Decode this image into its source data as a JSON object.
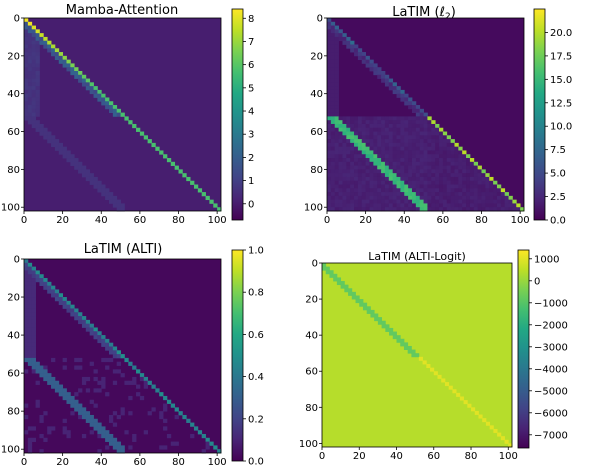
{
  "figure": {
    "layout": "2x2 grid of attention heatmaps with colorbars"
  },
  "chart_data": [
    {
      "type": "heatmap",
      "title": "Mamba-Attention",
      "x_ticks": [
        0,
        20,
        40,
        60,
        80,
        100
      ],
      "y_ticks": [
        0,
        20,
        40,
        60,
        80,
        100
      ],
      "xlim": [
        0,
        102
      ],
      "ylim": [
        102,
        0
      ],
      "colormap": "viridis",
      "colorbar": {
        "range": [
          -0.7,
          8.4
        ],
        "ticks": [
          "0",
          "1",
          "2",
          "3",
          "4",
          "5",
          "6",
          "7",
          "8"
        ]
      },
      "structure": {
        "main_diagonal_max": 8.2,
        "secondary_diagonal_value": 0.6,
        "background_value": 0.05
      }
    },
    {
      "type": "heatmap",
      "title": "LaTIM (ℓ",
      "title_sub": "2",
      "title_end": ")",
      "x_ticks": [
        0,
        20,
        40,
        60,
        80,
        100
      ],
      "y_ticks": [
        0,
        20,
        40,
        60,
        80,
        100
      ],
      "xlim": [
        0,
        102
      ],
      "ylim": [
        102,
        0
      ],
      "colormap": "viridis",
      "colorbar": {
        "range": [
          0,
          22.5
        ],
        "ticks": [
          "0.0",
          "2.5",
          "5.0",
          "7.5",
          "10.0",
          "12.5",
          "15.0",
          "17.5",
          "20.0"
        ]
      },
      "structure": {
        "main_diagonal_max": 17.5,
        "secondary_diagonal_value": 14.0,
        "background_value": 0.6
      }
    },
    {
      "type": "heatmap",
      "title": "LaTIM (ALTI)",
      "x_ticks": [
        0,
        20,
        40,
        60,
        80,
        100
      ],
      "y_ticks": [
        0,
        20,
        40,
        60,
        80,
        100
      ],
      "xlim": [
        0,
        102
      ],
      "ylim": [
        102,
        0
      ],
      "colormap": "viridis",
      "colorbar": {
        "range": [
          0,
          1.0
        ],
        "ticks": [
          "0.0",
          "0.2",
          "0.4",
          "0.6",
          "0.8",
          "1.0"
        ]
      },
      "structure": {
        "main_diagonal_max": 0.4,
        "secondary_diagonal_value": 0.3,
        "background_value": 0.02
      }
    },
    {
      "type": "heatmap",
      "title": "LaTIM (ALTI-Logit)",
      "x_ticks": [
        0,
        20,
        40,
        60,
        80,
        100
      ],
      "y_ticks": [
        0,
        20,
        40,
        60,
        80,
        100
      ],
      "xlim": [
        0,
        102
      ],
      "ylim": [
        102,
        0
      ],
      "colormap": "viridis",
      "colorbar": {
        "range": [
          -7600,
          1400
        ],
        "ticks": [
          "1000",
          "0",
          "−1000",
          "−2000",
          "−3000",
          "−4000",
          "−5000",
          "−6000",
          "−7000"
        ]
      },
      "structure": {
        "background_value": 400,
        "main_diagonal_value": 1000,
        "secondary_diagonal_value": -800
      }
    }
  ]
}
